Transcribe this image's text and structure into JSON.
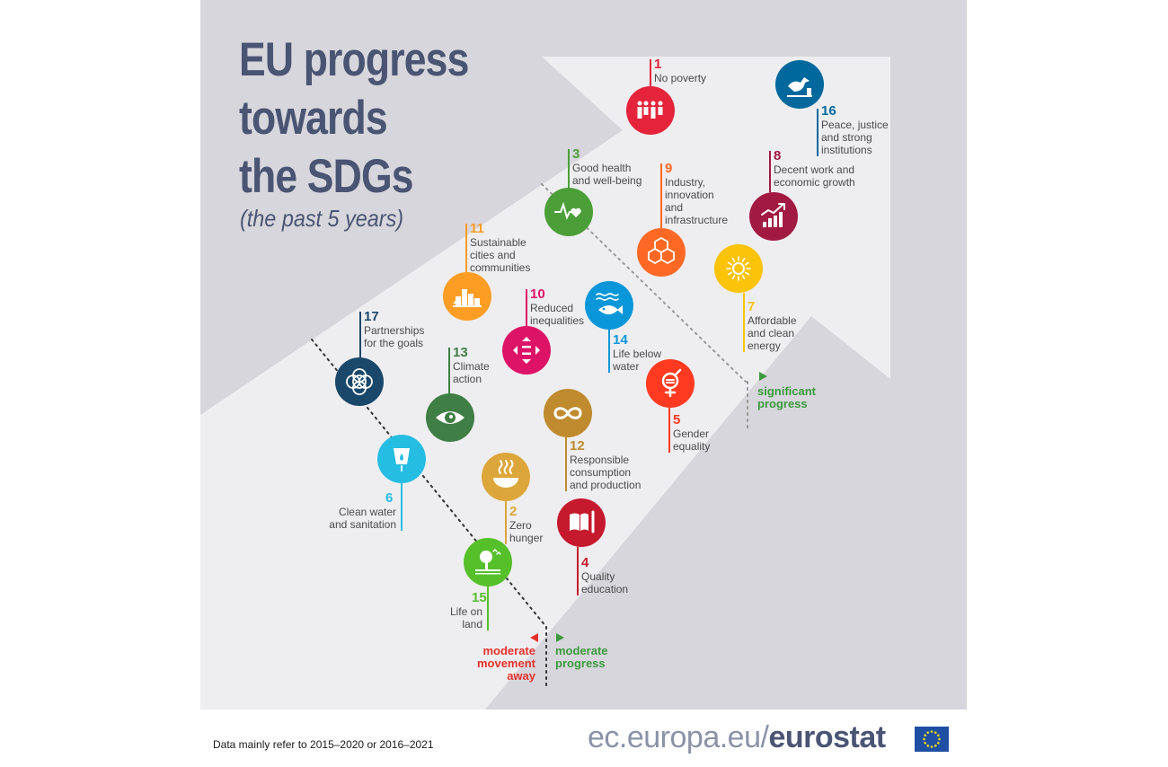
{
  "title_lines": [
    "EU progress",
    "towards",
    "the SDGs"
  ],
  "subtitle": "(the past 5 years)",
  "categories": {
    "significant": "significant\nprogress",
    "moderate_progress": "moderate\nprogress",
    "moderate_away": "moderate\nmovement\naway"
  },
  "goals": [
    {
      "number": "1",
      "label": "No poverty",
      "color": "#e5243b",
      "icon": "family-icon"
    },
    {
      "number": "2",
      "label": "Zero\nhunger",
      "color": "#dda63a",
      "icon": "bowl-icon"
    },
    {
      "number": "3",
      "label": "Good health\nand well-being",
      "color": "#4c9f38",
      "icon": "heartbeat-icon"
    },
    {
      "number": "4",
      "label": "Quality\neducation",
      "color": "#c5192d",
      "icon": "book-pencil-icon"
    },
    {
      "number": "5",
      "label": "Gender\nequality",
      "color": "#ff3a21",
      "icon": "gender-icon"
    },
    {
      "number": "6",
      "label": "Clean water\nand sanitation",
      "color": "#26bde2",
      "icon": "water-drop-icon"
    },
    {
      "number": "7",
      "label": "Affordable\nand clean\nenergy",
      "color": "#fcc30b",
      "icon": "sun-icon"
    },
    {
      "number": "8",
      "label": "Decent work and\neconomic growth",
      "color": "#a21942",
      "icon": "growth-chart-icon"
    },
    {
      "number": "9",
      "label": "Industry,\ninnovation\nand\ninfrastructure",
      "color": "#fd6925",
      "icon": "cubes-icon"
    },
    {
      "number": "10",
      "label": "Reduced\ninequalities",
      "color": "#dd1367",
      "icon": "equality-arrows-icon"
    },
    {
      "number": "11",
      "label": "Sustainable\ncities and\ncommunities",
      "color": "#fd9d24",
      "icon": "city-icon"
    },
    {
      "number": "12",
      "label": "Responsible\nconsumption\nand production",
      "color": "#bf8b2e",
      "icon": "infinity-icon"
    },
    {
      "number": "13",
      "label": "Climate\naction",
      "color": "#3f7e44",
      "icon": "eye-globe-icon"
    },
    {
      "number": "14",
      "label": "Life below\nwater",
      "color": "#0a97d9",
      "icon": "fish-icon"
    },
    {
      "number": "15",
      "label": "Life on\nland",
      "color": "#56c02b",
      "icon": "tree-icon"
    },
    {
      "number": "16",
      "label": "Peace, justice\nand strong\ninstitutions",
      "color": "#00689d",
      "icon": "dove-icon"
    },
    {
      "number": "17",
      "label": "Partnerships\nfor the goals",
      "color": "#19486a",
      "icon": "rings-icon"
    }
  ],
  "footer_note": "Data mainly refer to 2015–2020 or 2016–2021",
  "brand": {
    "prefix": "ec.europa.eu/",
    "name": "eurostat"
  },
  "colors": {
    "title": "#4a5473",
    "progress_green": "#3c9a3c",
    "away_red": "#e4322b",
    "flag_blue": "#1f4fa3",
    "flag_stars": "#ffdd00"
  }
}
